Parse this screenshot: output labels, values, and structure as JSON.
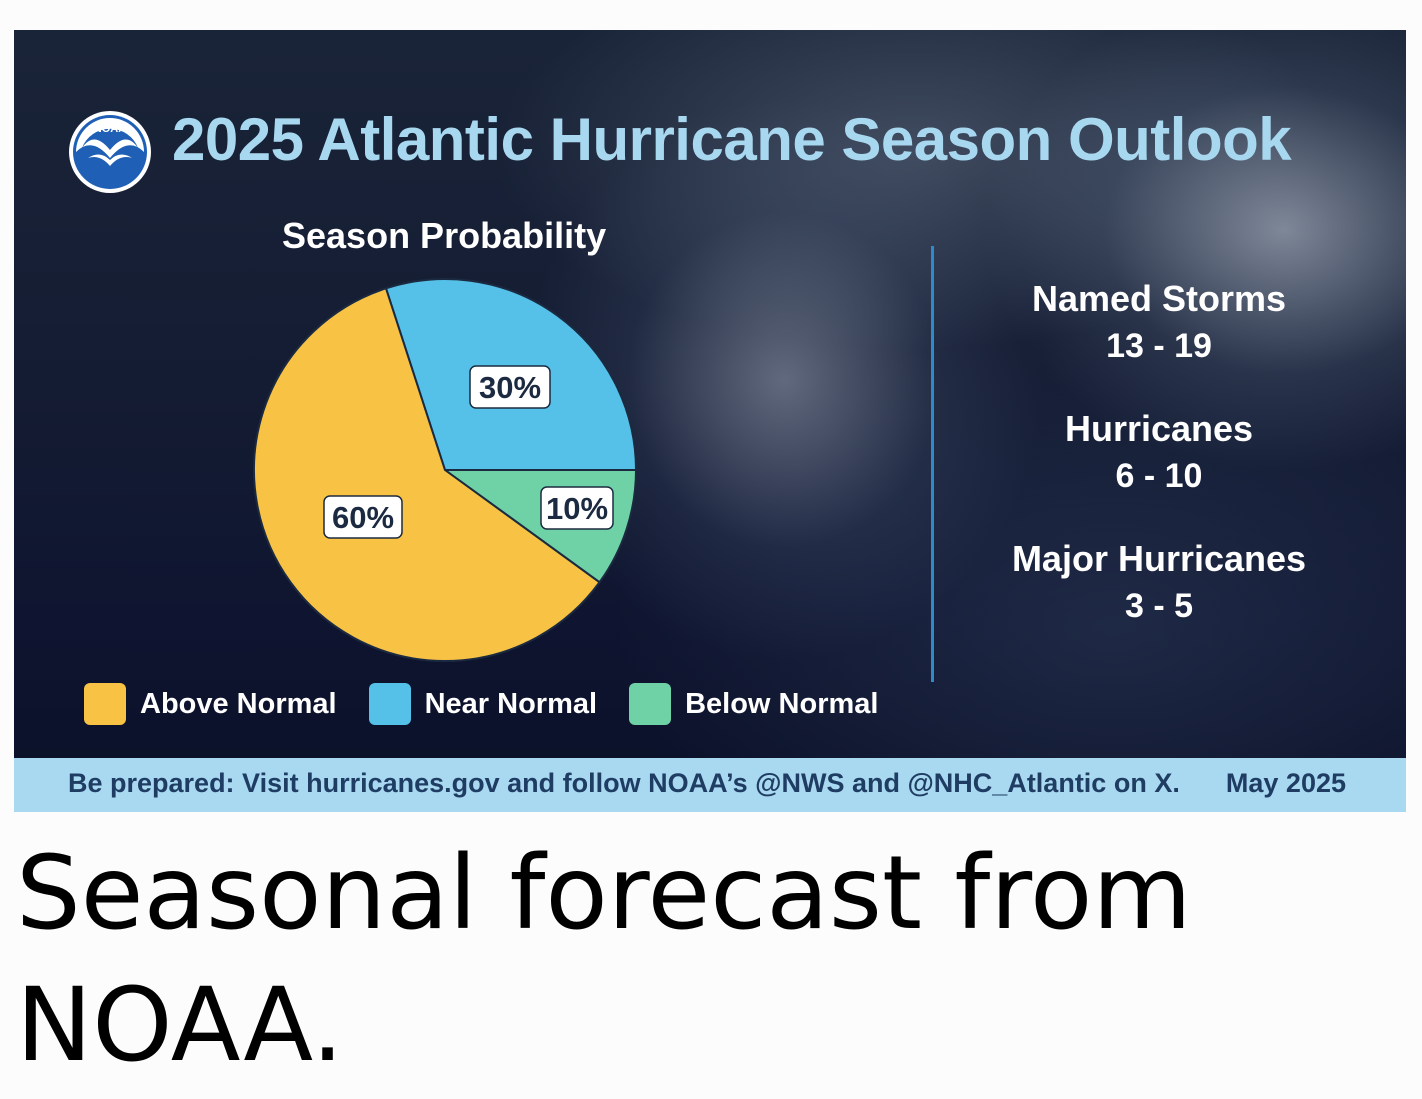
{
  "header": {
    "logo_text": "NOAA",
    "title": "2025 Atlantic Hurricane Season Outlook"
  },
  "chart_data": {
    "type": "pie",
    "title": "Season Probability",
    "slices": [
      {
        "label": "Near Normal",
        "value": 30,
        "display": "30%",
        "color": "#55c0e8"
      },
      {
        "label": "Below Normal",
        "value": 10,
        "display": "10%",
        "color": "#6fd2a6"
      },
      {
        "label": "Above Normal",
        "value": 60,
        "display": "60%",
        "color": "#f8c244"
      }
    ],
    "legend": [
      {
        "label": "Above Normal",
        "color": "#f8c244"
      },
      {
        "label": "Near Normal",
        "color": "#55c0e8"
      },
      {
        "label": "Below Normal",
        "color": "#6fd2a6"
      }
    ],
    "legend_position": "bottom"
  },
  "stats": [
    {
      "label": "Named Storms",
      "value": "13 - 19"
    },
    {
      "label": "Hurricanes",
      "value": "6 - 10"
    },
    {
      "label": "Major Hurricanes",
      "value": "3 - 5"
    }
  ],
  "footer": {
    "text": "Be prepared: Visit hurricanes.gov and follow NOAA’s @NWS and @NHC_Atlantic on X.",
    "date": "May 2025"
  },
  "caption": "Seasonal forecast from NOAA.",
  "colors": {
    "title": "#a8d8f0",
    "footer_bg": "#a9d9f1",
    "footer_text": "#1f3d63",
    "divider": "#2e8ac8"
  }
}
